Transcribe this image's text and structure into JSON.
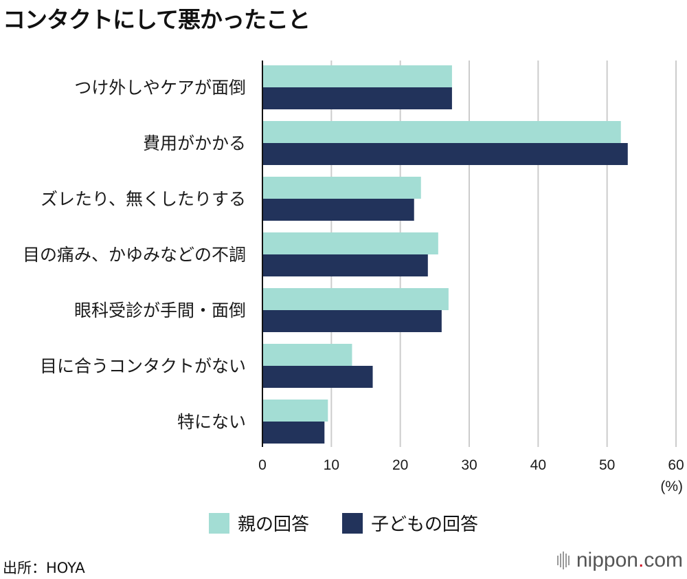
{
  "title": "コンタクトにして悪かったこと",
  "colors": {
    "parent": "#a3ddd4",
    "child": "#22335b",
    "grid": "#cccccc",
    "axis": "#111111"
  },
  "chart_data": {
    "type": "bar",
    "orientation": "horizontal",
    "categories": [
      "つけ外しやケアが面倒",
      "費用がかかる",
      "ズレたり、無くしたりする",
      "目の痛み、かゆみなどの不調",
      "眼科受診が手間・面倒",
      "目に合うコンタクトがない",
      "特にない"
    ],
    "series": [
      {
        "name": "親の回答",
        "values": [
          27.5,
          52,
          23,
          25.5,
          27,
          13,
          9.5
        ]
      },
      {
        "name": "子どもの回答",
        "values": [
          27.5,
          53,
          22,
          24,
          26,
          16,
          9
        ]
      }
    ],
    "xlim": [
      0,
      60
    ],
    "xticks": [
      0,
      10,
      20,
      30,
      40,
      50,
      60
    ],
    "unit": "(%)",
    "grid": true,
    "legend_position": "bottom"
  },
  "legend": {
    "parent": "親の回答",
    "child": "子どもの回答"
  },
  "source": "出所：HOYA",
  "logo": {
    "main": "nippon",
    "dot": ".",
    "suffix": "com"
  }
}
